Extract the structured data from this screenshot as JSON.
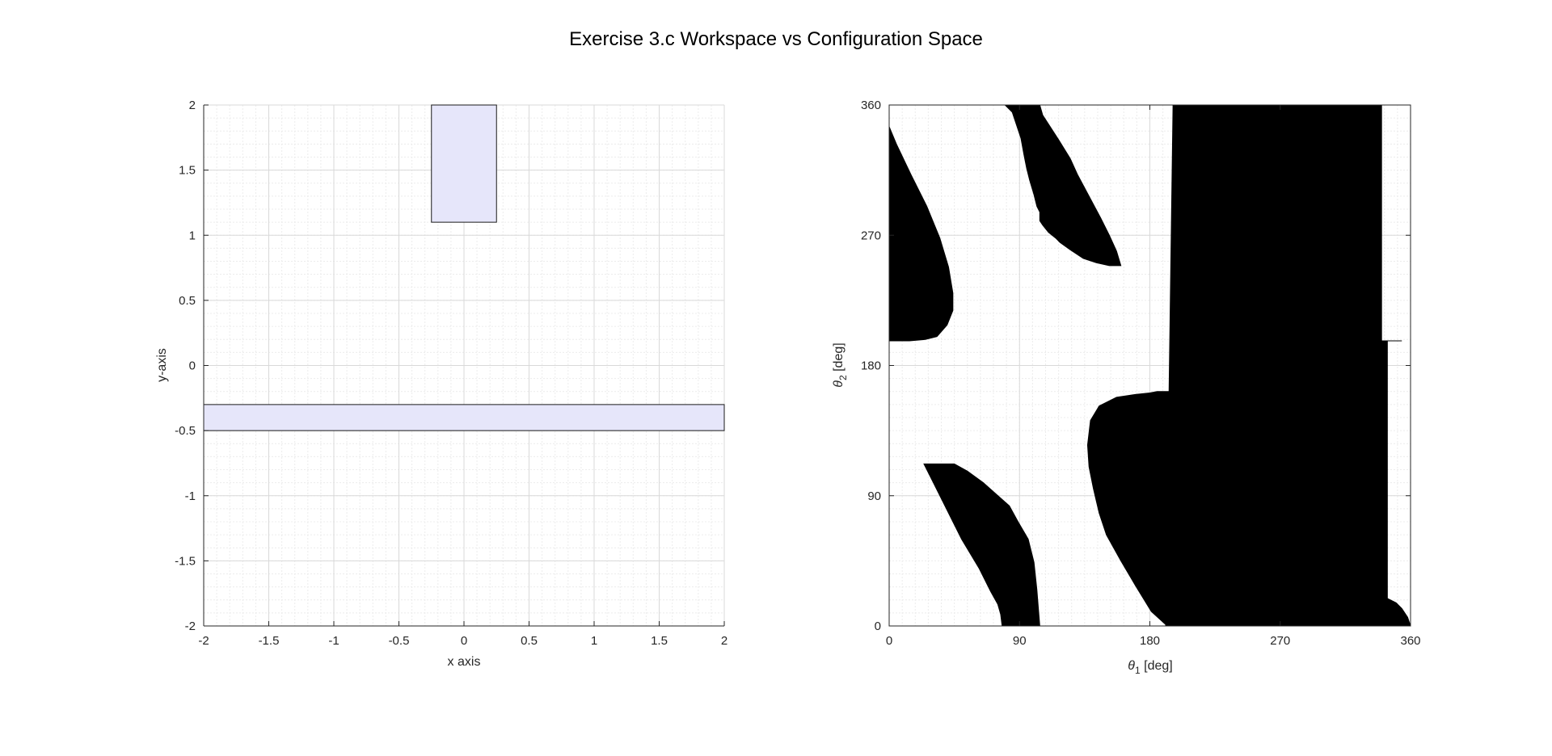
{
  "figure_title": "Exercise 3.c Workspace vs Configuration Space",
  "colors": {
    "obstacle_fill": "#e6e6fa",
    "obstacle_edge": "#1a1a1a",
    "cspace_obstacle": "#000000",
    "grid": "#d9d9d9"
  },
  "chart_data": [
    {
      "type": "area",
      "subplot": "workspace",
      "xlabel": "x axis",
      "ylabel": "y-axis",
      "xlim": [
        -2,
        2
      ],
      "ylim": [
        -2,
        2
      ],
      "xticks": [
        "-2",
        "-1.5",
        "-1",
        "-0.5",
        "0",
        "0.5",
        "1",
        "1.5",
        "2"
      ],
      "yticks": [
        "-2",
        "-1.5",
        "-1",
        "-0.5",
        "0",
        "0.5",
        "1",
        "1.5",
        "2"
      ],
      "grid": true,
      "minor_grid": true,
      "obstacles": [
        {
          "x": [
            -0.25,
            0.25,
            0.25,
            -0.25
          ],
          "y": [
            1.1,
            1.1,
            2,
            2
          ]
        },
        {
          "x": [
            -2,
            2,
            2,
            -2
          ],
          "y": [
            -0.5,
            -0.5,
            -0.3,
            -0.3
          ]
        }
      ]
    },
    {
      "type": "heatmap",
      "subplot": "configuration_space",
      "xlabel": "θ1 [deg]",
      "ylabel": "θ2 [deg]",
      "xlim": [
        0,
        360
      ],
      "ylim": [
        0,
        360
      ],
      "xticks": [
        "0",
        "90",
        "180",
        "270",
        "360"
      ],
      "yticks": [
        "0",
        "90",
        "180",
        "270",
        "360"
      ],
      "grid": true,
      "minor_grid": true,
      "collision_regions": [
        {
          "theta1": [
            0,
            5,
            15,
            26,
            35,
            41,
            44,
            44,
            40,
            33,
            25,
            14,
            5,
            0
          ],
          "theta2": [
            345,
            333,
            312,
            290,
            268,
            248,
            230,
            218,
            208,
            200,
            198,
            197,
            197,
            197
          ]
        },
        {
          "theta1": [
            78,
            104,
            106,
            117,
            125,
            130,
            138,
            146,
            152,
            157,
            160,
            156,
            152,
            143,
            134,
            125,
            118,
            115,
            110,
            106,
            104,
            104,
            102,
            100,
            97,
            95,
            93,
            91,
            85,
            80,
            78
          ],
          "theta2": [
            360,
            360,
            353,
            336,
            323,
            312,
            297,
            282,
            270,
            259,
            249,
            249,
            249,
            251,
            254,
            260,
            265,
            268,
            272,
            277,
            280,
            286,
            290,
            298,
            308,
            316,
            326,
            337,
            355,
            360,
            360
          ]
        },
        {
          "theta1": [
            191,
            199,
            199,
            192,
            181,
            170,
            160,
            150,
            145,
            141,
            138,
            137,
            139,
            145,
            157,
            170,
            180,
            185,
            190,
            191
          ],
          "theta2": [
            162,
            162,
            0,
            0,
            10,
            28,
            45,
            63,
            78,
            95,
            110,
            125,
            142,
            152,
            158,
            160,
            161,
            162,
            162,
            162
          ]
        },
        {
          "theta1": [
            24,
            45,
            54,
            65,
            74,
            83,
            89,
            96,
            100,
            102,
            104,
            102,
            78,
            77,
            75,
            70,
            62,
            50,
            40,
            30,
            24
          ],
          "theta2": [
            112,
            112,
            107,
            99,
            91,
            83,
            72,
            60,
            44,
            25,
            0,
            0,
            0,
            8,
            15,
            24,
            40,
            60,
            80,
            100,
            112
          ]
        },
        {
          "theta1": [
            191,
            360,
            360,
            358,
            354,
            350,
            346,
            344,
            344,
            350,
            354,
            354,
            352,
            345,
            338,
            340,
            340,
            333,
            331,
            327,
            196,
            196,
            199,
            199,
            191
          ],
          "theta2": [
            0,
            0,
            0,
            6,
            12,
            16,
            18,
            19,
            197,
            197,
            197,
            197,
            197,
            197,
            197,
            197,
            360,
            360,
            360,
            360,
            360,
            360,
            345,
            162,
            0
          ]
        }
      ],
      "obstacle_areas": [
        {
          "theta1": [
            191,
            196,
            199,
            199,
            199,
            191
          ],
          "theta2": [
            0,
            360,
            360,
            162,
            0,
            0
          ]
        }
      ]
    }
  ]
}
